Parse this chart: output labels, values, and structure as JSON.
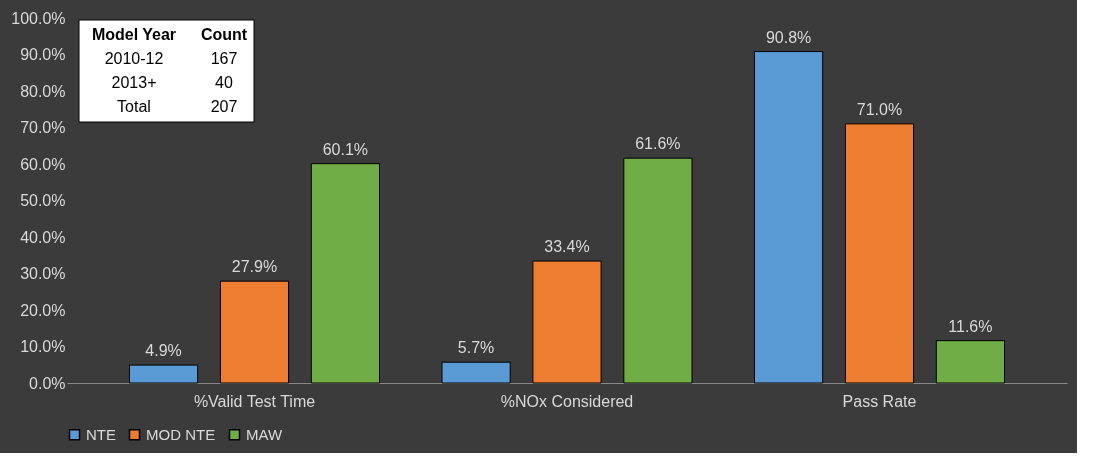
{
  "chart_data": {
    "type": "bar",
    "categories": [
      "%Valid Test Time",
      "%NOx Considered",
      "Pass Rate"
    ],
    "series": [
      {
        "name": "NTE",
        "color": "#5b9bd5",
        "values": [
          4.9,
          5.7,
          90.8
        ],
        "value_labels": [
          "4.9%",
          "5.7%",
          "90.8%"
        ]
      },
      {
        "name": "MOD NTE",
        "color": "#ed7d31",
        "values": [
          27.9,
          33.4,
          71.0
        ],
        "value_labels": [
          "27.9%",
          "33.4%",
          "71.0%"
        ]
      },
      {
        "name": "MAW",
        "color": "#70ad47",
        "values": [
          60.1,
          61.6,
          11.6
        ],
        "value_labels": [
          "60.1%",
          "61.6%",
          "11.6%"
        ]
      }
    ],
    "ylim": [
      0,
      100
    ],
    "yticks": [
      {
        "value": 0,
        "label": "0.0%"
      },
      {
        "value": 10,
        "label": "10.0%"
      },
      {
        "value": 20,
        "label": "20.0%"
      },
      {
        "value": 30,
        "label": "30.0%"
      },
      {
        "value": 40,
        "label": "40.0%"
      },
      {
        "value": 50,
        "label": "50.0%"
      },
      {
        "value": 60,
        "label": "60.0%"
      },
      {
        "value": 70,
        "label": "70.0%"
      },
      {
        "value": 80,
        "label": "80.0%"
      },
      {
        "value": 90,
        "label": "90.0%"
      },
      {
        "value": 100,
        "label": "100.0%"
      }
    ],
    "legend": "bottom",
    "annotations": [
      "Model Year",
      "Count",
      "2010-12",
      "167",
      "2013+",
      "40",
      "Total",
      "207"
    ]
  }
}
